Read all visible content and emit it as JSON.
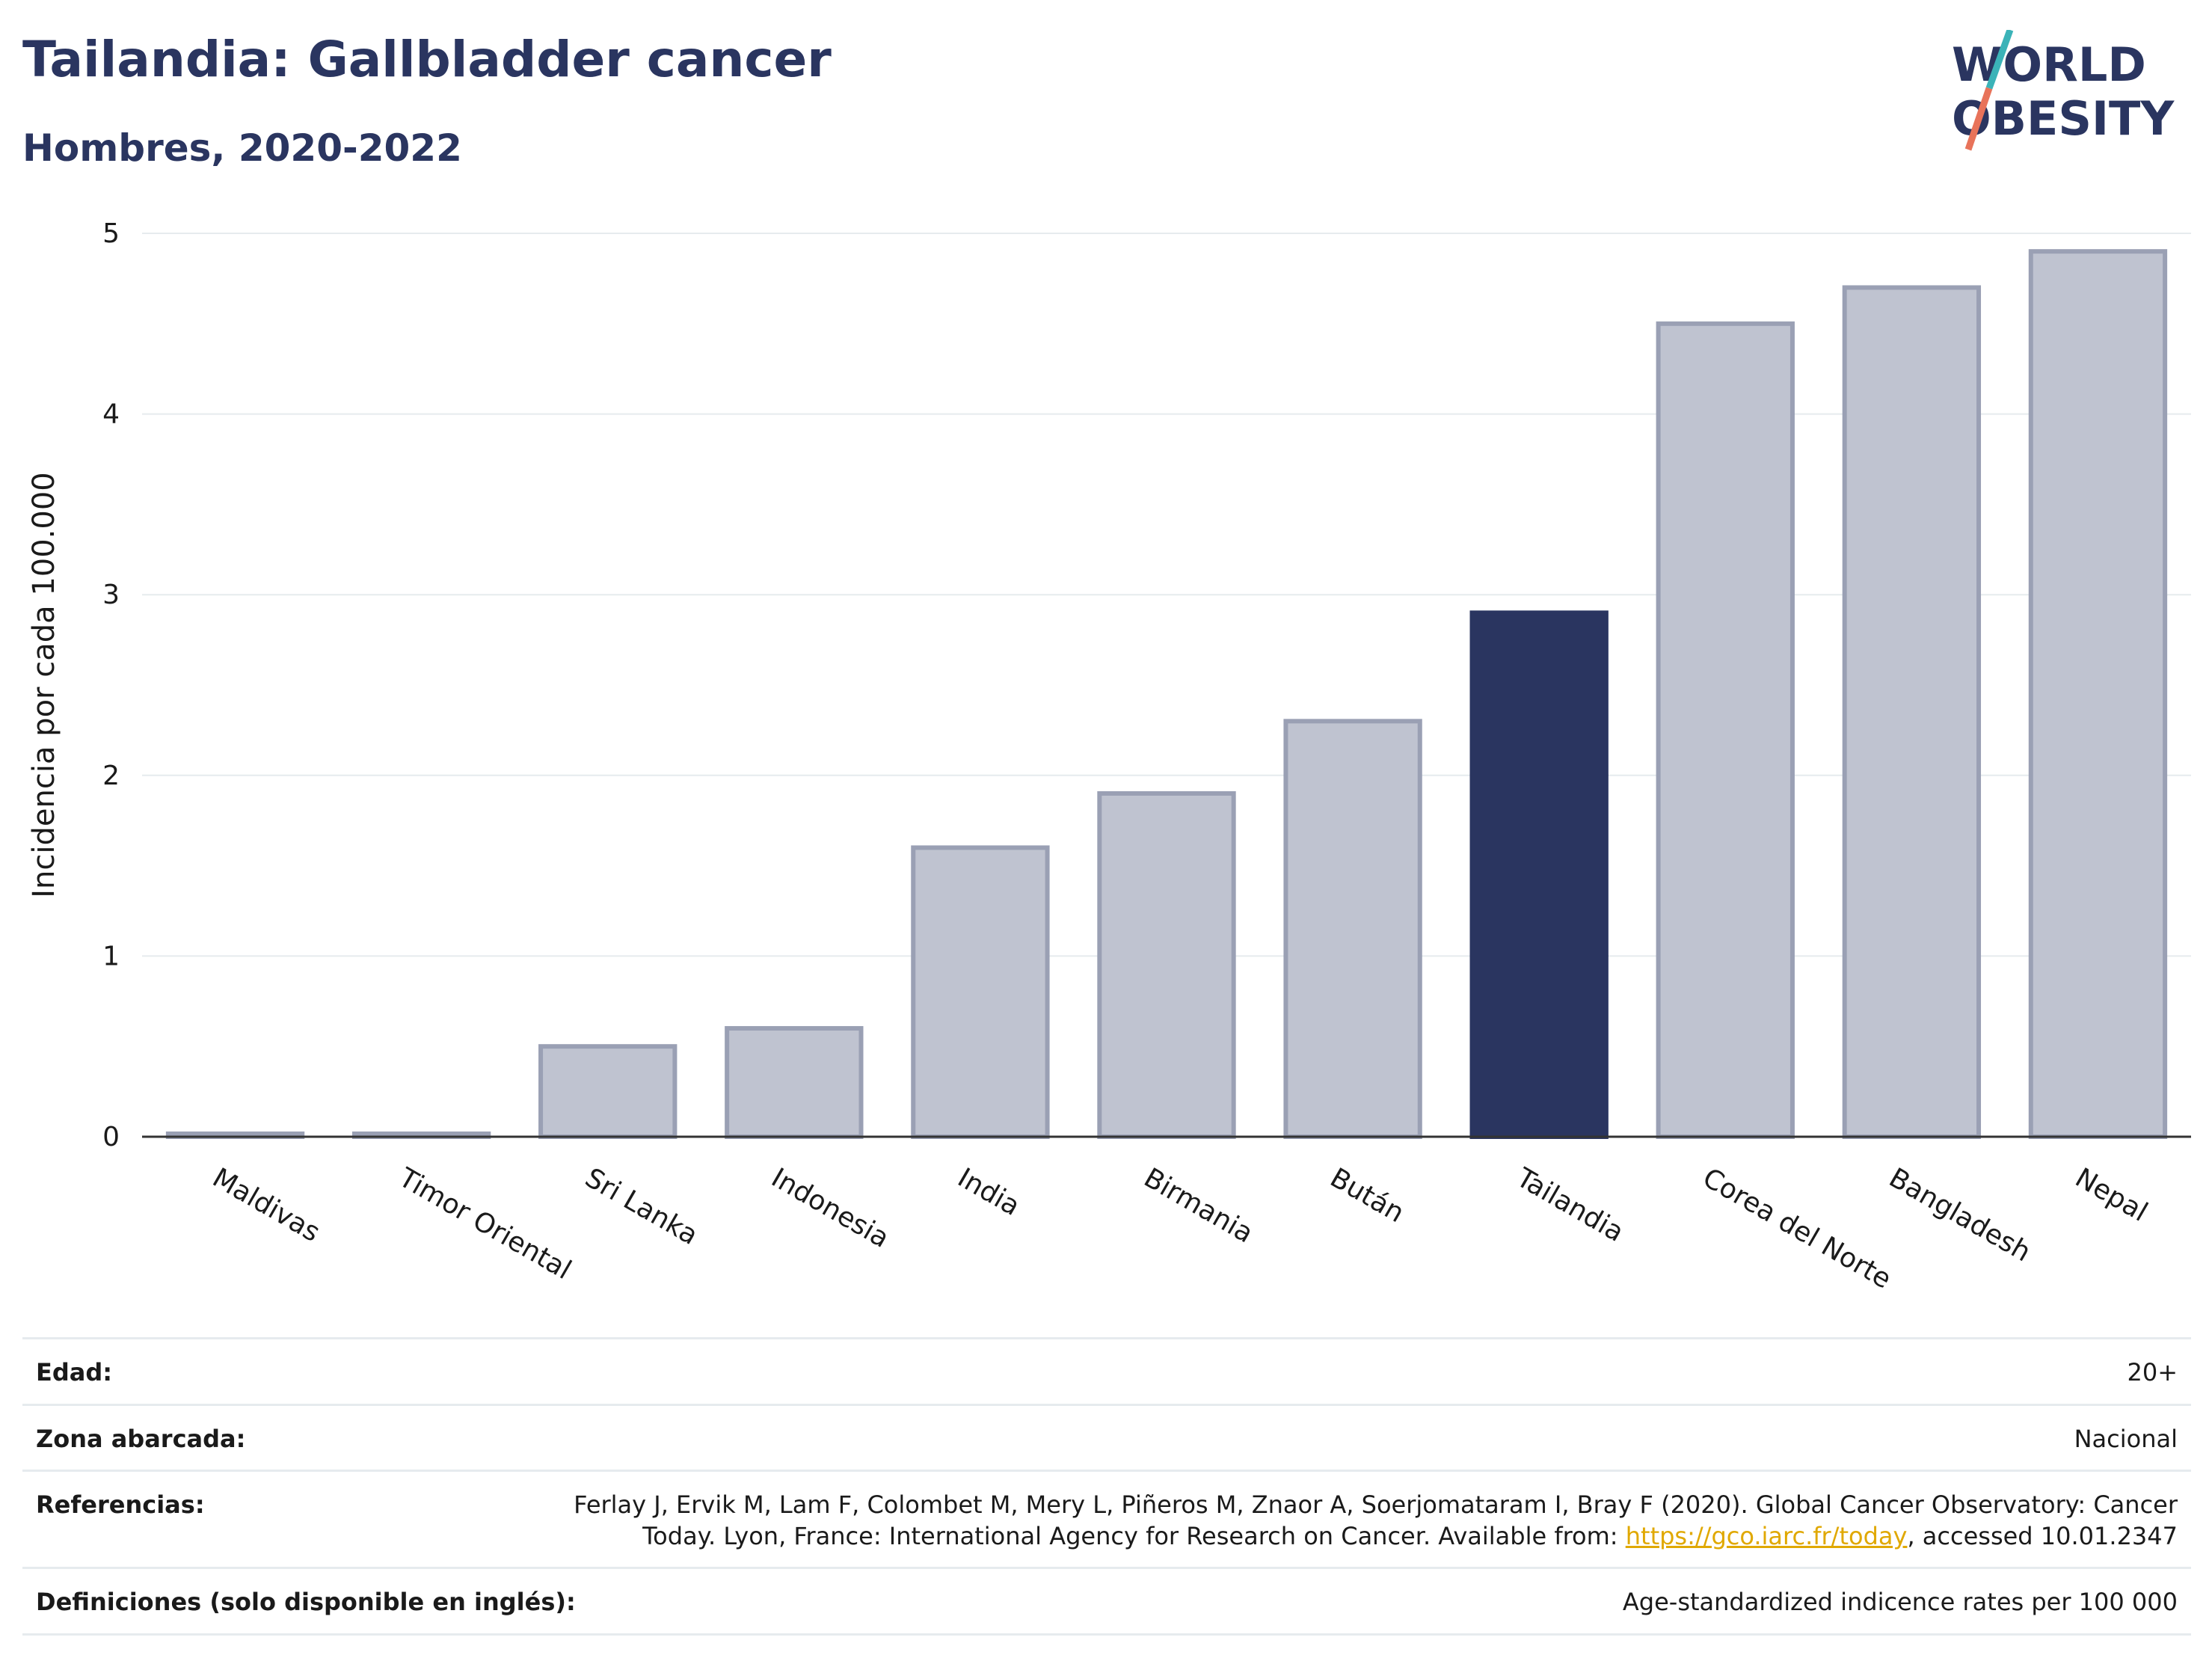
{
  "header": {
    "title": "Tailandia: Gallbladder cancer",
    "subtitle": "Hombres, 2020-2022"
  },
  "logo": {
    "line1": "WORLD",
    "line2": "OBESITY",
    "colors": {
      "text": "#2a3560",
      "slash_top": "#3bb3b8",
      "slash_bottom": "#e8735a"
    }
  },
  "chart_data": {
    "type": "bar",
    "title": "",
    "xlabel": "",
    "ylabel": "Incidencia por cada 100.000",
    "categories": [
      "Maldivas",
      "Timor Oriental",
      "Sri Lanka",
      "Indonesia",
      "India",
      "Birmania",
      "Bután",
      "Tailandia",
      "Corea del Norte",
      "Bangladesh",
      "Nepal"
    ],
    "values": [
      0,
      0,
      0.5,
      0.6,
      1.6,
      1.9,
      2.3,
      2.9,
      4.5,
      4.7,
      4.9
    ],
    "highlight": "Tailandia",
    "ylim": [
      0,
      5
    ],
    "yticks": [
      "0",
      "1",
      "2",
      "3",
      "4",
      "5"
    ],
    "grid": true,
    "colors": {
      "bar": "#bfc3d0",
      "bar_border": "#9aa0b4",
      "highlight": "#2a3560",
      "grid": "#e6ebee"
    }
  },
  "meta": {
    "rows": [
      {
        "label": "Edad:",
        "value": "20+"
      },
      {
        "label": "Zona abarcada:",
        "value": "Nacional"
      },
      {
        "label": "Referencias:",
        "value_before": "Ferlay J, Ervik M, Lam F, Colombet M, Mery L, Piñeros M, Znaor A, Soerjomataram I, Bray F (2020). Global Cancer Observatory: Cancer Today. Lyon, France: International Agency for Research on Cancer. Available from: ",
        "link": "https://gco.iarc.fr/today",
        "value_after": ", accessed 10.01.2347"
      },
      {
        "label": "Definiciones (solo disponible en inglés):",
        "value": "Age-standardized indicence rates per 100 000"
      }
    ]
  }
}
